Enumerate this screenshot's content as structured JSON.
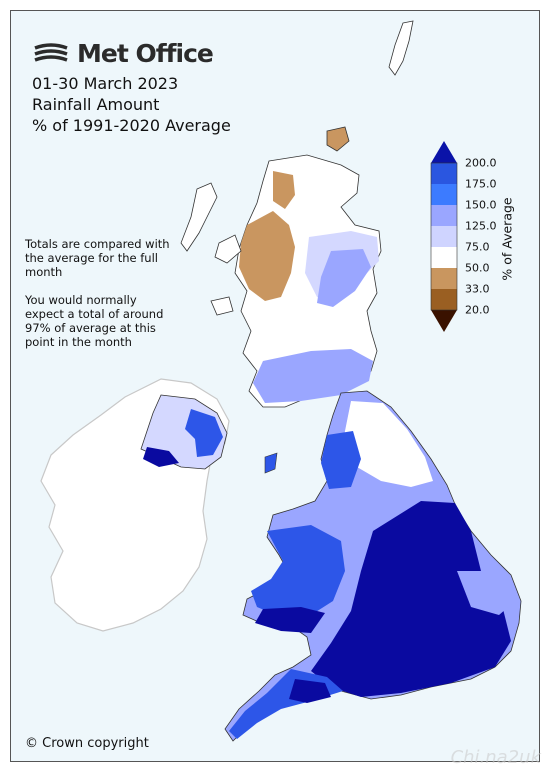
{
  "logo": {
    "text": "Met Office",
    "icon": "met-office-swirl-icon"
  },
  "title": {
    "line1": "01-30 March 2023",
    "line2": "Rainfall Amount",
    "line3": "% of 1991-2020 Average"
  },
  "notes": {
    "note1": "Totals are compared with the average for the full month",
    "note2": "You would normally expect a total of around 97% of average at this point in the month"
  },
  "legend": {
    "label": "% of Average",
    "ticks": [
      "200.0",
      "175.0",
      "150.0",
      "125.0",
      "75.0",
      "50.0",
      "33.0",
      "20.0"
    ],
    "colors": [
      "#2a56e0",
      "#3c7bff",
      "#9aa6ff",
      "#cfd4ff",
      "#ffffff",
      "#c9965f",
      "#9a5f22",
      "#5a2a00",
      "#3a1200",
      "#0a13a8"
    ]
  },
  "copyright": "© Crown copyright",
  "watermark": "Chi.na2uk",
  "colors": {
    "sea": "#eef7fb",
    "deep_blue": "#0a0aa0",
    "mid_blue": "#2d56e8",
    "light_blue": "#9aa6ff",
    "pale_blue": "#d4d8ff",
    "brown": "#c99660",
    "ireland": "#ffffff"
  }
}
